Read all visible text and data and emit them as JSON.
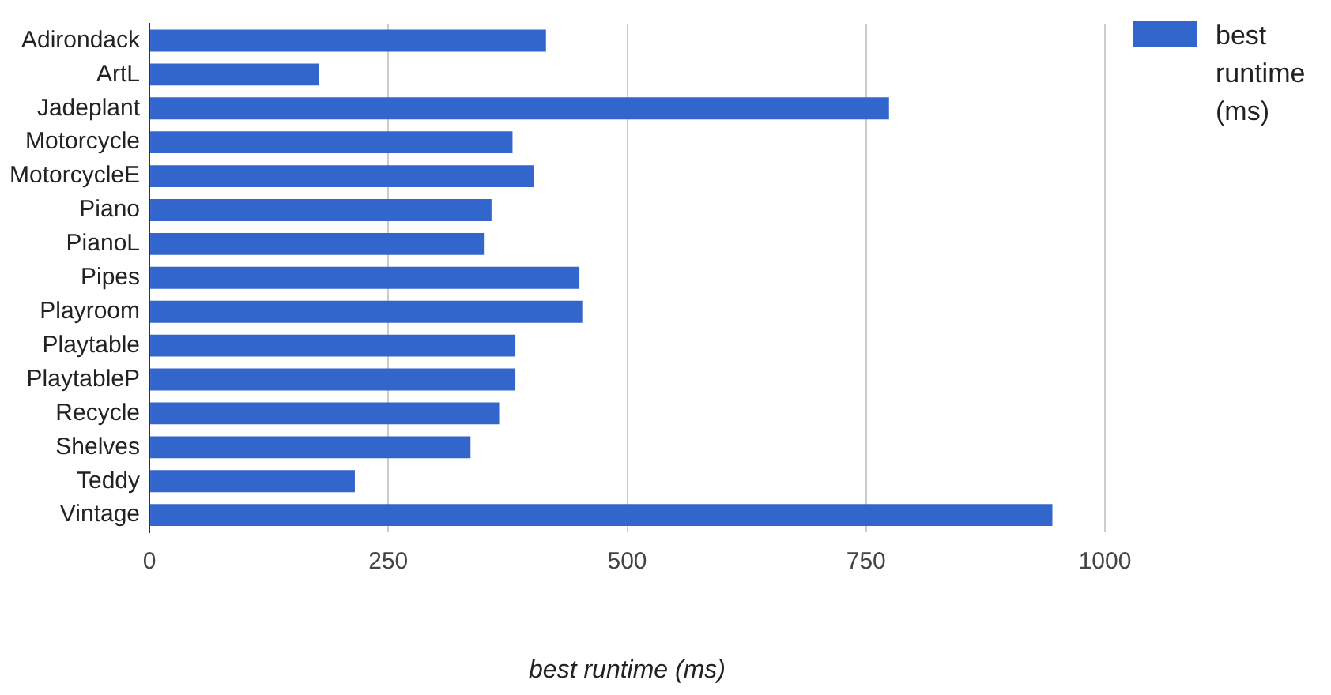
{
  "chart_data": {
    "type": "bar",
    "orientation": "horizontal",
    "xlabel": "best runtime (ms)",
    "categories": [
      "Adirondack",
      "ArtL",
      "Jadeplant",
      "Motorcycle",
      "MotorcycleE",
      "Piano",
      "PianoL",
      "Pipes",
      "Playroom",
      "Playtable",
      "PlaytableP",
      "Recycle",
      "Shelves",
      "Teddy",
      "Vintage"
    ],
    "series": [
      {
        "name": "best runtime (ms)",
        "color": "#3366cc",
        "values": [
          415,
          177,
          774,
          380,
          402,
          358,
          350,
          450,
          453,
          383,
          383,
          366,
          336,
          215,
          945
        ]
      }
    ],
    "xlim": [
      0,
      1000
    ],
    "xticks": [
      0,
      250,
      500,
      750,
      1000
    ],
    "grid": "x",
    "legend": "top right"
  }
}
